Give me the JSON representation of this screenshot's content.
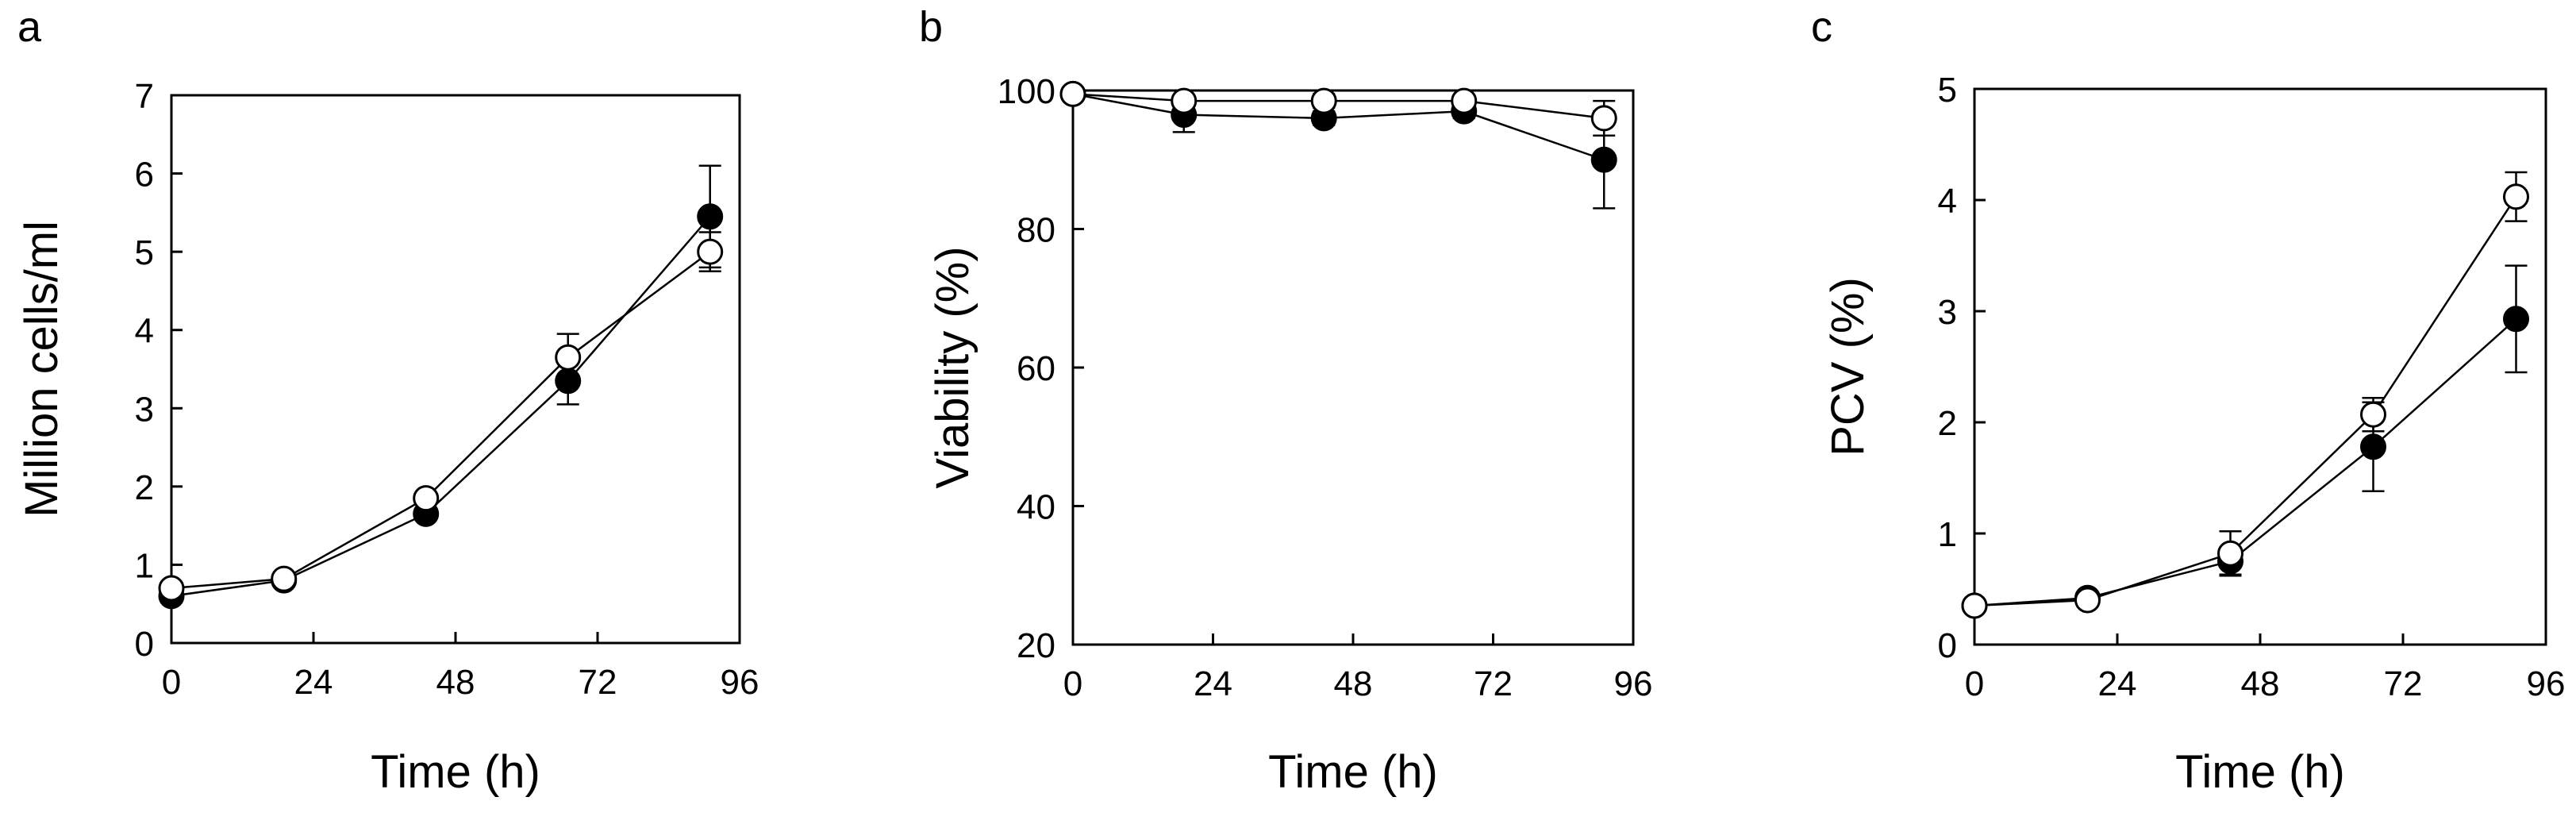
{
  "chart_data": [
    {
      "panel": "a",
      "type": "line",
      "xlabel": "Time (h)",
      "ylabel": "Million cells/ml",
      "xlim": [
        0,
        96
      ],
      "ylim": [
        0,
        7
      ],
      "xticks": [
        0,
        24,
        48,
        72,
        96
      ],
      "yticks": [
        0,
        1,
        2,
        3,
        4,
        5,
        6,
        7
      ],
      "grid": false,
      "series": [
        {
          "name": "filled circles",
          "marker": "filled-circle",
          "x": [
            0,
            19,
            43,
            67,
            91
          ],
          "y": [
            0.6,
            0.8,
            1.65,
            3.35,
            5.45
          ],
          "err": [
            0.05,
            0.05,
            0.05,
            0.3,
            0.65
          ]
        },
        {
          "name": "open circles",
          "marker": "open-circle",
          "x": [
            0,
            19,
            43,
            67,
            91
          ],
          "y": [
            0.7,
            0.82,
            1.85,
            3.65,
            5.0
          ],
          "err": [
            0.05,
            0.05,
            0.05,
            0.3,
            0.25
          ]
        }
      ]
    },
    {
      "panel": "b",
      "type": "line",
      "xlabel": "Time (h)",
      "ylabel": "Viability (%)",
      "xlim": [
        0,
        96
      ],
      "ylim": [
        20,
        100
      ],
      "xticks": [
        0,
        24,
        48,
        72,
        96
      ],
      "yticks": [
        20,
        40,
        60,
        80,
        100
      ],
      "grid": false,
      "series": [
        {
          "name": "filled circles",
          "marker": "filled-circle",
          "x": [
            0,
            19,
            43,
            67,
            91
          ],
          "y": [
            99.5,
            96.5,
            96,
            97,
            90
          ],
          "err": [
            0.5,
            2.5,
            1,
            1,
            7
          ]
        },
        {
          "name": "open circles",
          "marker": "open-circle",
          "x": [
            0,
            19,
            43,
            67,
            91
          ],
          "y": [
            99.5,
            98.5,
            98.5,
            98.5,
            96
          ],
          "err": [
            0.3,
            1.5,
            1,
            0.5,
            2.5
          ]
        }
      ]
    },
    {
      "panel": "c",
      "type": "line",
      "xlabel": "Time (h)",
      "ylabel": "PCV (%)",
      "xlim": [
        0,
        96
      ],
      "ylim": [
        0,
        5
      ],
      "xticks": [
        0,
        24,
        48,
        72,
        96
      ],
      "yticks": [
        0,
        1,
        2,
        3,
        4,
        5
      ],
      "grid": false,
      "series": [
        {
          "name": "filled circles",
          "marker": "filled-circle",
          "x": [
            0,
            19,
            43,
            67,
            91
          ],
          "y": [
            0.35,
            0.42,
            0.75,
            1.78,
            2.93
          ],
          "err": [
            0.03,
            0.03,
            0.12,
            0.4,
            0.48
          ]
        },
        {
          "name": "open circles",
          "marker": "open-circle",
          "x": [
            0,
            19,
            43,
            67,
            91
          ],
          "y": [
            0.35,
            0.4,
            0.82,
            2.07,
            4.03
          ],
          "err": [
            0.03,
            0.03,
            0.2,
            0.15,
            0.22
          ]
        }
      ]
    }
  ]
}
